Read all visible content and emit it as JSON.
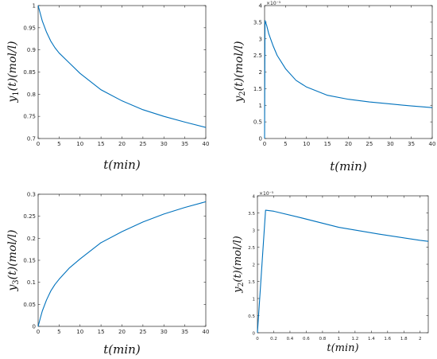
{
  "chart_data": [
    {
      "type": "line",
      "xlabel": "t(min)",
      "ylabel": "y1(t)(mol/l)",
      "ylabel_var": "y",
      "ylabel_sub": "1",
      "ylabel_rest": "(t)(mol/l)",
      "xlim": [
        0,
        40
      ],
      "ylim": [
        0.7,
        1
      ],
      "xticks": [
        0,
        5,
        10,
        15,
        20,
        25,
        30,
        35,
        40
      ],
      "yticks": [
        0.7,
        0.75,
        0.8,
        0.85,
        0.9,
        0.95,
        1
      ],
      "ytick_labels": [
        "0.7",
        "0.75",
        "0.8",
        "0.85",
        "0.9",
        "0.95",
        "1"
      ],
      "grid": false,
      "series": [
        {
          "color": "#0072BD",
          "x": [
            0,
            1,
            2,
            3,
            4,
            5,
            7.5,
            10,
            15,
            20,
            25,
            30,
            35,
            40
          ],
          "y": [
            1.0,
            0.965,
            0.94,
            0.92,
            0.905,
            0.893,
            0.87,
            0.847,
            0.81,
            0.785,
            0.765,
            0.75,
            0.737,
            0.725
          ]
        }
      ]
    },
    {
      "type": "line",
      "xlabel": "t(min)",
      "ylabel": "y2(t)(mol/l)",
      "ylabel_var": "y",
      "ylabel_sub": "2",
      "ylabel_rest": "(t)(mol/l)",
      "xlim": [
        0,
        40
      ],
      "ylim": [
        0,
        4
      ],
      "exponent": "×10⁻⁵",
      "xticks": [
        0,
        5,
        10,
        15,
        20,
        25,
        30,
        35,
        40
      ],
      "yticks": [
        0,
        0.5,
        1,
        1.5,
        2,
        2.5,
        3,
        3.5,
        4
      ],
      "ytick_labels": [
        "0",
        "0.5",
        "1",
        "1.5",
        "2",
        "2.5",
        "3",
        "3.5",
        "4"
      ],
      "grid": false,
      "series": [
        {
          "color": "#0072BD",
          "x": [
            0,
            0.1,
            0.5,
            1,
            2,
            3,
            4,
            5,
            7.5,
            10,
            15,
            20,
            25,
            30,
            35,
            40
          ],
          "y": [
            0,
            3.55,
            3.4,
            3.15,
            2.8,
            2.5,
            2.3,
            2.1,
            1.75,
            1.55,
            1.3,
            1.18,
            1.1,
            1.04,
            0.98,
            0.93
          ]
        }
      ]
    },
    {
      "type": "line",
      "xlabel": "t(min)",
      "ylabel": "y3(t)(mol/l)",
      "ylabel_var": "y",
      "ylabel_sub": "3",
      "ylabel_rest": "(t)(mol/l)",
      "xlim": [
        0,
        40
      ],
      "ylim": [
        0,
        0.3
      ],
      "xticks": [
        0,
        5,
        10,
        15,
        20,
        25,
        30,
        35,
        40
      ],
      "yticks": [
        0,
        0.05,
        0.1,
        0.15,
        0.2,
        0.25,
        0.3
      ],
      "ytick_labels": [
        "0",
        "0.05",
        "0.1",
        "0.15",
        "0.2",
        "0.25",
        "0.3"
      ],
      "grid": false,
      "series": [
        {
          "color": "#0072BD",
          "x": [
            0,
            0.5,
            1,
            2,
            3,
            4,
            5,
            7.5,
            10,
            15,
            20,
            25,
            30,
            35,
            40
          ],
          "y": [
            0,
            0.018,
            0.035,
            0.06,
            0.08,
            0.095,
            0.107,
            0.133,
            0.153,
            0.19,
            0.215,
            0.237,
            0.255,
            0.27,
            0.283
          ]
        }
      ]
    },
    {
      "type": "line",
      "xlabel": "t(min)",
      "ylabel": "y2(t)(mol/l)",
      "ylabel_var": "y",
      "ylabel_sub": "2",
      "ylabel_rest": "(t)(mol/l)",
      "xlim": [
        0,
        2.1
      ],
      "ylim": [
        0,
        4
      ],
      "exponent": "×10⁻⁵",
      "xticks": [
        0,
        0.2,
        0.4,
        0.6,
        0.8,
        1,
        1.2,
        1.4,
        1.6,
        1.8,
        2
      ],
      "yticks": [
        0,
        0.5,
        1,
        1.5,
        2,
        2.5,
        3,
        3.5,
        4
      ],
      "ytick_labels": [
        "0",
        "0.5",
        "1",
        "1.5",
        "2",
        "2.5",
        "3",
        "3.5",
        "4"
      ],
      "grid": false,
      "series": [
        {
          "color": "#0072BD",
          "x": [
            0,
            0.1,
            0.2,
            0.5,
            1,
            1.5,
            2,
            2.1
          ],
          "y": [
            0,
            3.58,
            3.55,
            3.38,
            3.08,
            2.88,
            2.7,
            2.67
          ]
        }
      ]
    }
  ]
}
